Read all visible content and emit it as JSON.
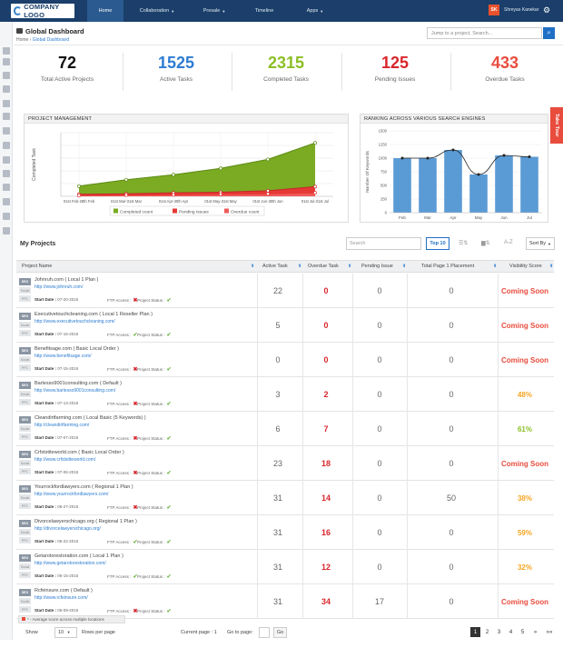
{
  "header": {
    "logo_text": "COMPANY LOGO",
    "nav": [
      {
        "label": "Home",
        "active": true,
        "caret": false
      },
      {
        "label": "Collaboration",
        "active": false,
        "caret": true
      },
      {
        "label": "Presale",
        "active": false,
        "caret": true
      },
      {
        "label": "Timeline",
        "active": false,
        "caret": false
      },
      {
        "label": "Apps",
        "active": false,
        "caret": true
      }
    ],
    "user_initials": "SK",
    "user_name": "Shreyas Kanekar"
  },
  "page": {
    "title": "Global Dashboard",
    "breadcrumb_home": "Home",
    "breadcrumb_current": "Global Dashboard",
    "jump_placeholder": "Jump to a project, Search..."
  },
  "stats": [
    {
      "value": "72",
      "label": "Total Active Projects",
      "color": "#111111"
    },
    {
      "value": "1525",
      "label": "Active Tasks",
      "color": "#2d7dd2"
    },
    {
      "value": "2315",
      "label": "Completed Tasks",
      "color": "#8cbf26"
    },
    {
      "value": "125",
      "label": "Pending Issues",
      "color": "#d9262c"
    },
    {
      "value": "433",
      "label": "Overdue Tasks",
      "color": "#e84c3d"
    }
  ],
  "take_tour": "Take Tour",
  "project_chart": {
    "heading": "PROJECT MANAGEMENT",
    "ylabel": "Completed Task",
    "categories": [
      "01st Feb-28th Feb",
      "01st Mar-31st Mar",
      "01st Apr-30th Apr",
      "01st May-31st May",
      "01st Jun-30th Jun",
      "01st Jul-31st Jul"
    ],
    "completed": [
      40,
      65,
      85,
      110,
      145,
      210
    ],
    "pending": [
      8,
      10,
      14,
      16,
      22,
      38
    ],
    "overdue": [
      3,
      5,
      6,
      8,
      10,
      14
    ],
    "ylim": [
      0,
      250
    ],
    "legend": [
      "Completed count",
      "Pending Issues",
      "Overdue count"
    ],
    "colors": {
      "completed": "#7aab22",
      "pending": "#e53935",
      "overdue": "#f05a5a"
    }
  },
  "ranking_chart": {
    "heading": "RANKING ACROSS VARIOUS SEARCH ENGINES",
    "ylabel": "Number Of Keywords",
    "categories": [
      "Feb",
      "Mar",
      "Apr",
      "May",
      "Jun",
      "Jul"
    ],
    "values": [
      1000,
      1000,
      1150,
      700,
      1050,
      1025
    ],
    "yticks": [
      "0",
      "250",
      "500",
      "750",
      "1000",
      "1250",
      "1500"
    ],
    "ylim": [
      0,
      1500
    ],
    "bar_color": "#5b9bd5"
  },
  "projects": {
    "heading": "My Projects",
    "search_placeholder": "Search",
    "top_button": "Top 10",
    "sort_label": "Sort By",
    "az_label": "A-Z",
    "columns": [
      "Project Name",
      "Active Task",
      "Overdue Task",
      "Pending Issue",
      "Total Page 1 Placement",
      "Visibility Score"
    ],
    "tags": [
      "SEO",
      "Social",
      "PPC"
    ],
    "start_label": "Start Date :",
    "ftp_label": "FTP Access :",
    "status_label": "Project Status :",
    "rows": [
      {
        "name": "Johnruh.com ( Local 1 Plan )",
        "url": "http://www.johnruh.com/",
        "start": "07-20-2015",
        "ftp": false,
        "status": true,
        "active": "22",
        "overdue": "0",
        "pending": "0",
        "placement": "0",
        "score": "Coming Soon",
        "score_color": "#e84c3d"
      },
      {
        "name": "Executivetouchcleaning.com ( Local 1 Reseller Plan )",
        "url": "http://www.executivetouchcleaning.com/",
        "start": "07-16-2015",
        "ftp": true,
        "status": true,
        "active": "5",
        "overdue": "0",
        "pending": "0",
        "placement": "0",
        "score": "Coming Soon",
        "score_color": "#e84c3d"
      },
      {
        "name": "Benefitsage.com ( Basic Local Order )",
        "url": "http://www.benefitsage.com/",
        "start": "07-15-2015",
        "ftp": false,
        "status": true,
        "active": "0",
        "overdue": "0",
        "pending": "0",
        "placement": "0",
        "score": "Coming Soon",
        "score_color": "#e84c3d"
      },
      {
        "name": "Barlesso9001consulting.com ( Default )",
        "url": "http://www.barlesso9001consulting.com/",
        "start": "07-13-2015",
        "ftp": false,
        "status": true,
        "active": "3",
        "overdue": "2",
        "pending": "0",
        "placement": "0",
        "score": "48%",
        "score_color": "#f5a623"
      },
      {
        "name": "Cleandirtfarming.com ( Local Basic (5 Keywords) )",
        "url": "http://cleandirtfarming.com/",
        "start": "07-07-2015",
        "ftp": false,
        "status": true,
        "active": "6",
        "overdue": "7",
        "pending": "0",
        "placement": "0",
        "score": "61%",
        "score_color": "#8cbf26"
      },
      {
        "name": "Crfststiteworld.com ( Basic Local Order )",
        "url": "http://www.crfststiteworld.com/",
        "start": "07-06-2015",
        "ftp": false,
        "status": true,
        "active": "23",
        "overdue": "18",
        "pending": "0",
        "placement": "0",
        "score": "Coming Soon",
        "score_color": "#e84c3d"
      },
      {
        "name": "Yourrockfordlawyers.com ( Regional 1 Plan )",
        "url": "http://www.yourrockfordlawyers.com/",
        "start": "06-27-2015",
        "ftp": false,
        "status": true,
        "active": "31",
        "overdue": "14",
        "pending": "0",
        "placement": "50",
        "score": "38%",
        "score_color": "#f5a623"
      },
      {
        "name": "Divorcelawyerschicago.org ( Regional 1 Plan )",
        "url": "http://divorcelawyerschicago.org/",
        "start": "06-22-2015",
        "ftp": true,
        "status": true,
        "active": "31",
        "overdue": "16",
        "pending": "0",
        "placement": "0",
        "score": "59%",
        "score_color": "#f5a623"
      },
      {
        "name": "Getarotorestoration.com ( Local 1 Plan )",
        "url": "http://www.getarotorestoration.com/",
        "start": "06-15-2015",
        "ftp": true,
        "status": true,
        "active": "31",
        "overdue": "12",
        "pending": "0",
        "placement": "0",
        "score": "32%",
        "score_color": "#f5a623"
      },
      {
        "name": "Rcfeinsure.com ( Default )",
        "url": "http://www.rcfeinsure.com/",
        "start": "06-09-2015",
        "ftp": false,
        "status": true,
        "active": "31",
        "overdue": "34",
        "pending": "17",
        "placement": "0",
        "score": "Coming Soon",
        "score_color": "#e84c3d"
      }
    ]
  },
  "note": "* - Average score across multiple locations",
  "footer": {
    "show_label": "Show",
    "rows_value": "10",
    "rows_label": "Rows per page",
    "current_page_label": "Current page : 1",
    "goto_label": "Go to page:",
    "go_button": "Go",
    "pages": [
      "1",
      "2",
      "3",
      "4",
      "5"
    ],
    "next": "»",
    "last": "»»"
  }
}
